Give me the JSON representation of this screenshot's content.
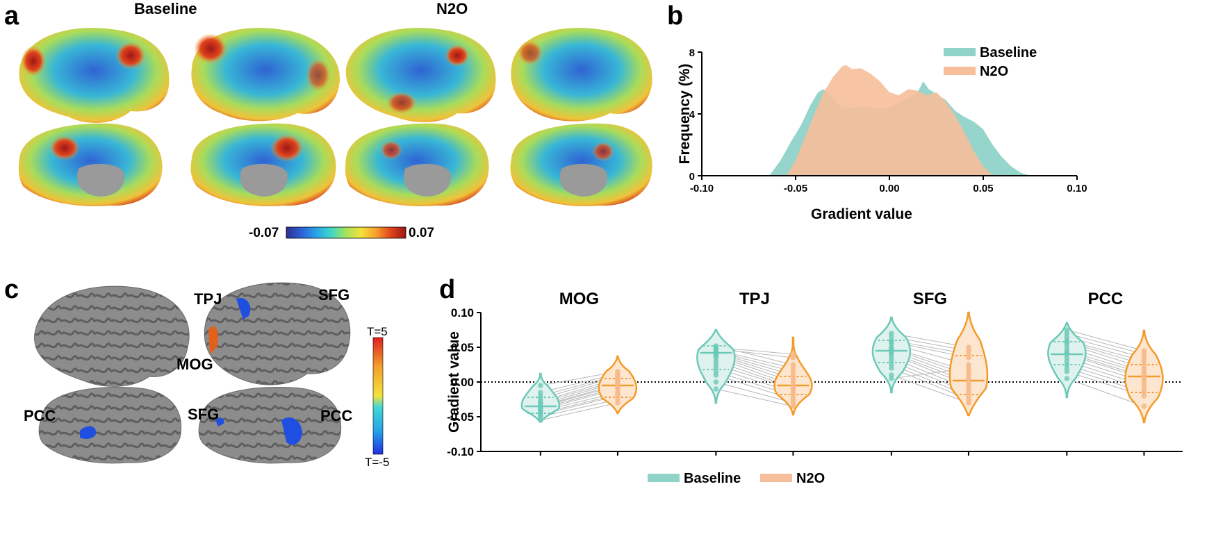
{
  "panels": {
    "a": {
      "label": "a",
      "title_left": "Baseline",
      "title_right": "N2O",
      "colorbar": {
        "min_label": "-0.07",
        "max_label": "0.07",
        "colors": [
          "#2b2f8f",
          "#2e5fd6",
          "#27a3e8",
          "#3fd7c8",
          "#a6e25a",
          "#f3e23b",
          "#f6a12b",
          "#e0441c",
          "#9e1616"
        ]
      }
    },
    "b": {
      "label": "b"
    },
    "c": {
      "label": "c",
      "region_labels": [
        "TPJ",
        "SFG",
        "MOG",
        "PCC",
        "SFG",
        "PCC"
      ],
      "colorbar": {
        "max_label": "T=5",
        "min_label": "T=-5"
      }
    },
    "d": {
      "label": "d"
    }
  },
  "chart_data": [
    {
      "id": "b",
      "type": "area",
      "title": "",
      "xlabel": "Gradient value",
      "ylabel": "Frequency (%)",
      "xlim": [
        -0.1,
        0.1
      ],
      "ylim": [
        0,
        8
      ],
      "xticks": [
        "-0.10",
        "-0.05",
        "0.00",
        "0.05",
        "0.10"
      ],
      "xtick_values": [
        -0.1,
        -0.05,
        0.0,
        0.05,
        0.1
      ],
      "yticks": [
        "0",
        "4",
        "8"
      ],
      "ytick_values": [
        0,
        4,
        8
      ],
      "legend": [
        "Baseline",
        "N2O"
      ],
      "series": [
        {
          "name": "Baseline",
          "color": "#8fd3c9",
          "x": [
            -0.064,
            -0.058,
            -0.052,
            -0.047,
            -0.042,
            -0.038,
            -0.035,
            -0.03,
            -0.025,
            -0.02,
            -0.015,
            -0.01,
            -0.005,
            0,
            0.005,
            0.01,
            0.015,
            0.018,
            0.021,
            0.025,
            0.03,
            0.035,
            0.04,
            0.045,
            0.05,
            0.055,
            0.06,
            0.065,
            0.07,
            0.075
          ],
          "y": [
            0,
            1.0,
            2.3,
            3.3,
            4.6,
            5.4,
            5.6,
            5.0,
            4.3,
            4.4,
            4.5,
            4.4,
            4.3,
            4.4,
            4.7,
            5.0,
            5.4,
            6.1,
            5.6,
            5.3,
            4.9,
            4.2,
            3.8,
            3.5,
            3.0,
            2.0,
            1.2,
            0.6,
            0.2,
            0
          ]
        },
        {
          "name": "N2O",
          "color": "#f6be9a",
          "x": [
            -0.055,
            -0.05,
            -0.045,
            -0.04,
            -0.035,
            -0.03,
            -0.025,
            -0.023,
            -0.02,
            -0.015,
            -0.01,
            -0.005,
            0,
            0.005,
            0.01,
            0.015,
            0.02,
            0.025,
            0.03,
            0.035,
            0.04,
            0.045,
            0.05,
            0.055
          ],
          "y": [
            0,
            1.0,
            2.5,
            4.0,
            5.4,
            6.4,
            7.1,
            7.15,
            6.9,
            6.95,
            6.6,
            6.1,
            5.4,
            5.2,
            5.6,
            5.5,
            5.2,
            5.4,
            4.8,
            3.9,
            2.8,
            1.6,
            0.6,
            0
          ]
        }
      ]
    },
    {
      "id": "d",
      "type": "violin",
      "title": "",
      "xlabel": "",
      "ylabel": "Gradient value",
      "ylim": [
        -0.1,
        0.1
      ],
      "yticks": [
        "0.10",
        "0.05",
        "0.00",
        "-0.05",
        "-0.10"
      ],
      "ytick_values": [
        0.1,
        0.05,
        0.0,
        -0.05,
        -0.1
      ],
      "zero_line": true,
      "legend": [
        "Baseline",
        "N2O"
      ],
      "series": [
        {
          "name": "Baseline",
          "color": "#6cc9b8",
          "fill": "#dff2ee"
        },
        {
          "name": "N2O",
          "color": "#f39a2b",
          "fill": "#fde6cf"
        }
      ],
      "categories": [
        {
          "name": "MOG",
          "baseline": {
            "min": -0.057,
            "max": 0.012,
            "q1": -0.045,
            "median": -0.035,
            "q3": -0.022,
            "points": [
              -0.055,
              -0.05,
              -0.047,
              -0.045,
              -0.042,
              -0.04,
              -0.038,
              -0.036,
              -0.035,
              -0.033,
              -0.03,
              -0.028,
              -0.024,
              -0.02,
              -0.015,
              -0.005
            ]
          },
          "n2o": {
            "min": -0.045,
            "max": 0.037,
            "q1": -0.022,
            "median": -0.005,
            "q3": 0.005,
            "points": [
              -0.03,
              -0.025,
              -0.02,
              -0.018,
              -0.015,
              -0.01,
              -0.008,
              -0.005,
              -0.003,
              0,
              0.002,
              0.005,
              0.008,
              0.01,
              0.012,
              0.015
            ]
          }
        },
        {
          "name": "TPJ",
          "baseline": {
            "min": -0.03,
            "max": 0.075,
            "q1": 0.018,
            "median": 0.042,
            "q3": 0.052,
            "points": [
              0.05,
              0.048,
              0.052,
              0.046,
              0.044,
              0.042,
              0.04,
              0.038,
              0.035,
              0.03,
              0.025,
              0.02,
              0.015,
              0.01,
              0.0,
              -0.01
            ]
          },
          "n2o": {
            "min": -0.047,
            "max": 0.064,
            "q1": -0.018,
            "median": -0.005,
            "q3": 0.008,
            "points": [
              0.04,
              0.035,
              0.025,
              0.02,
              0.015,
              0.01,
              0.005,
              0.0,
              -0.005,
              -0.008,
              -0.01,
              -0.015,
              -0.02,
              -0.025,
              -0.03,
              -0.035
            ]
          }
        },
        {
          "name": "SFG",
          "baseline": {
            "min": -0.015,
            "max": 0.093,
            "q1": 0.028,
            "median": 0.045,
            "q3": 0.06,
            "points": [
              0.07,
              0.065,
              0.06,
              0.058,
              0.055,
              0.05,
              0.048,
              0.045,
              0.042,
              0.04,
              0.035,
              0.03,
              0.025,
              0.02,
              0.01,
              0.005
            ]
          },
          "n2o": {
            "min": -0.048,
            "max": 0.1,
            "q1": -0.018,
            "median": 0.002,
            "q3": 0.038,
            "points": [
              0.05,
              0.045,
              0.04,
              0.035,
              0.025,
              0.015,
              0.01,
              0.005,
              0.0,
              -0.005,
              -0.01,
              -0.015,
              -0.02,
              -0.025,
              -0.03,
              0.02
            ]
          }
        },
        {
          "name": "PCC",
          "baseline": {
            "min": -0.022,
            "max": 0.085,
            "q1": 0.025,
            "median": 0.04,
            "q3": 0.058,
            "points": [
              0.075,
              0.07,
              0.065,
              0.06,
              0.058,
              0.055,
              0.05,
              0.045,
              0.042,
              0.04,
              0.035,
              0.03,
              0.025,
              0.02,
              0.015,
              0.005
            ]
          },
          "n2o": {
            "min": -0.058,
            "max": 0.074,
            "q1": -0.015,
            "median": 0.008,
            "q3": 0.025,
            "points": [
              0.045,
              0.04,
              0.035,
              0.03,
              0.025,
              0.02,
              0.015,
              0.012,
              0.008,
              0.005,
              0.0,
              -0.005,
              -0.01,
              -0.015,
              -0.02,
              -0.035
            ]
          }
        }
      ]
    }
  ]
}
